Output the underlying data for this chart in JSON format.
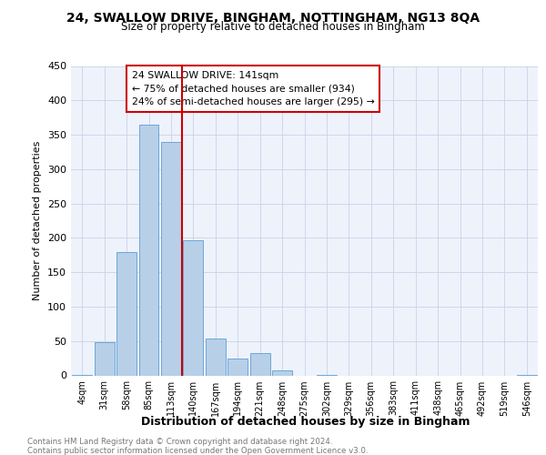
{
  "title1": "24, SWALLOW DRIVE, BINGHAM, NOTTINGHAM, NG13 8QA",
  "title2": "Size of property relative to detached houses in Bingham",
  "xlabel": "Distribution of detached houses by size in Bingham",
  "ylabel": "Number of detached properties",
  "footnote1": "Contains HM Land Registry data © Crown copyright and database right 2024.",
  "footnote2": "Contains public sector information licensed under the Open Government Licence v3.0.",
  "bar_color": "#b8cfe8",
  "bar_edge_color": "#5a9fd4",
  "categories": [
    "4sqm",
    "31sqm",
    "58sqm",
    "85sqm",
    "113sqm",
    "140sqm",
    "167sqm",
    "194sqm",
    "221sqm",
    "248sqm",
    "275sqm",
    "302sqm",
    "329sqm",
    "356sqm",
    "383sqm",
    "411sqm",
    "438sqm",
    "465sqm",
    "492sqm",
    "519sqm",
    "546sqm"
  ],
  "values": [
    1,
    48,
    179,
    365,
    339,
    197,
    53,
    25,
    32,
    7,
    0,
    1,
    0,
    0,
    0,
    0,
    0,
    0,
    0,
    0,
    1
  ],
  "ylim": [
    0,
    450
  ],
  "yticks": [
    0,
    50,
    100,
    150,
    200,
    250,
    300,
    350,
    400,
    450
  ],
  "property_line_index": 5,
  "annotation_title": "24 SWALLOW DRIVE: 141sqm",
  "annotation_line1": "← 75% of detached houses are smaller (934)",
  "annotation_line2": "24% of semi-detached houses are larger (295) →",
  "annotation_box_color": "#ffffff",
  "annotation_box_edge_color": "#cc0000",
  "property_line_color": "#cc0000",
  "grid_color": "#c8d4e8",
  "background_color": "#eef2fb"
}
